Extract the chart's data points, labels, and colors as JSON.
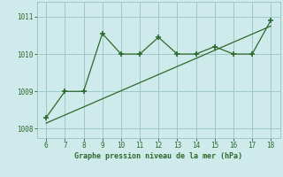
{
  "x": [
    6,
    7,
    8,
    9,
    10,
    11,
    12,
    13,
    14,
    15,
    16,
    17,
    18
  ],
  "y": [
    1008.3,
    1009.0,
    1009.0,
    1010.55,
    1010.0,
    1010.0,
    1010.45,
    1010.0,
    1010.0,
    1010.2,
    1010.0,
    1010.0,
    1010.9
  ],
  "trend_x": [
    6,
    18
  ],
  "trend_y": [
    1008.15,
    1010.75
  ],
  "line_color": "#2d6a2d",
  "bg_color": "#ceeaea",
  "grid_color": "#9ec8c8",
  "xlabel": "Graphe pression niveau de la mer (hPa)",
  "xlim": [
    5.5,
    18.5
  ],
  "ylim": [
    1007.75,
    1011.4
  ],
  "yticks": [
    1008,
    1009,
    1010,
    1011
  ],
  "xticks": [
    6,
    7,
    8,
    9,
    10,
    11,
    12,
    13,
    14,
    15,
    16,
    17,
    18
  ]
}
